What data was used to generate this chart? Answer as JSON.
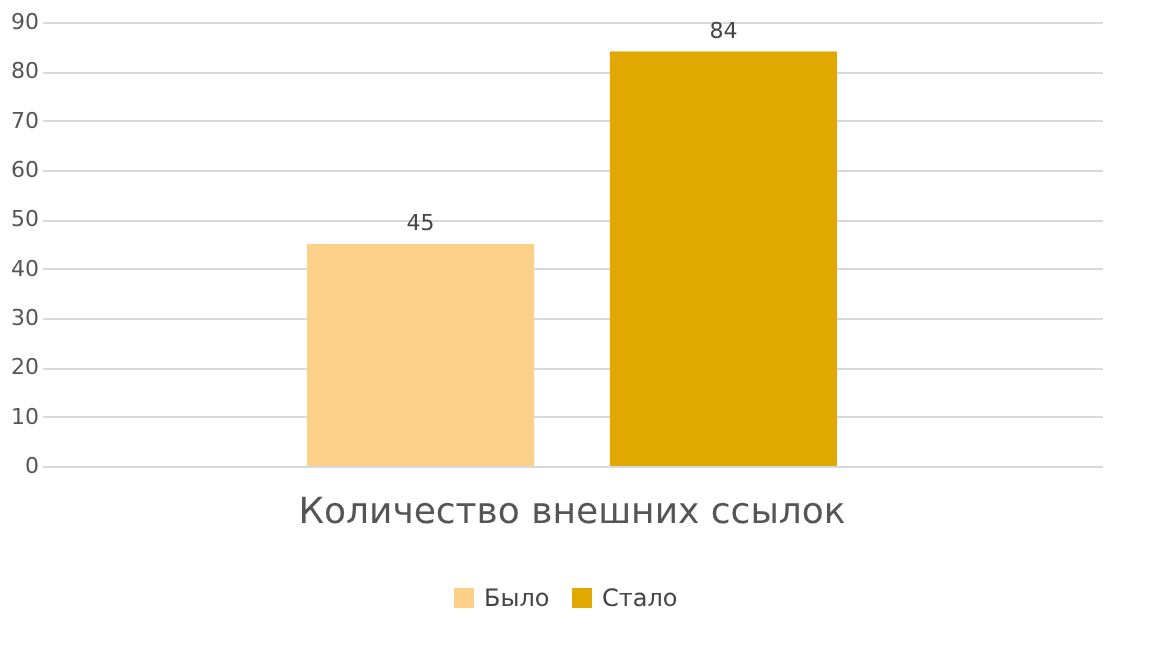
{
  "chart_data": {
    "type": "bar",
    "categories": [
      "Количество внешних ссылок"
    ],
    "series": [
      {
        "name": "Было",
        "color": "#fdd08a",
        "values": [
          45
        ]
      },
      {
        "name": "Стало",
        "color": "#e0a800",
        "values": [
          84
        ]
      }
    ],
    "ylim": [
      0,
      90
    ],
    "yticks": [
      0,
      10,
      20,
      30,
      40,
      50,
      60,
      70,
      80,
      90
    ],
    "grid": "y",
    "legend": "bottom",
    "data_labels": true
  }
}
